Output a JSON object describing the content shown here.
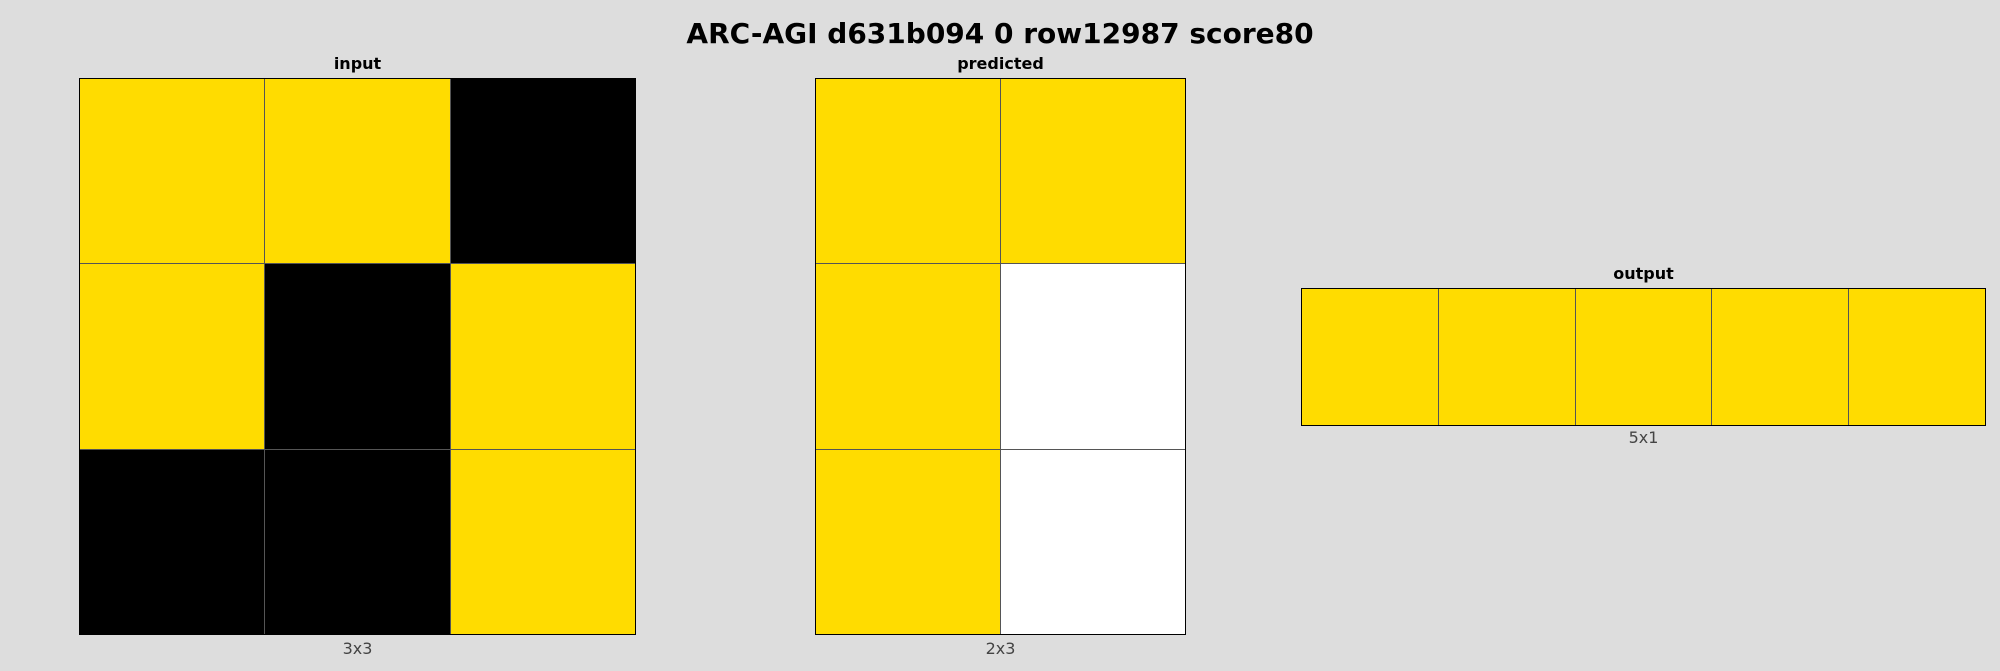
{
  "title": "ARC-AGI d631b094 0 row12987 score80",
  "palette": {
    "0": "#000000",
    "4": "#FFDC00",
    "w": "#FFFFFF"
  },
  "panels": {
    "input": {
      "label": "input",
      "size_label": "3x3",
      "rows": 3,
      "cols": 3,
      "cells": [
        [
          "4",
          "4",
          "0"
        ],
        [
          "4",
          "0",
          "4"
        ],
        [
          "0",
          "0",
          "4"
        ]
      ]
    },
    "predicted": {
      "label": "predicted",
      "size_label": "2x3",
      "rows": 3,
      "cols": 2,
      "cells": [
        [
          "4",
          "4"
        ],
        [
          "4",
          "w"
        ],
        [
          "4",
          "w"
        ]
      ]
    },
    "output": {
      "label": "output",
      "size_label": "5x1",
      "rows": 1,
      "cols": 5,
      "cells": [
        [
          "4",
          "4",
          "4",
          "4",
          "4"
        ]
      ]
    }
  }
}
